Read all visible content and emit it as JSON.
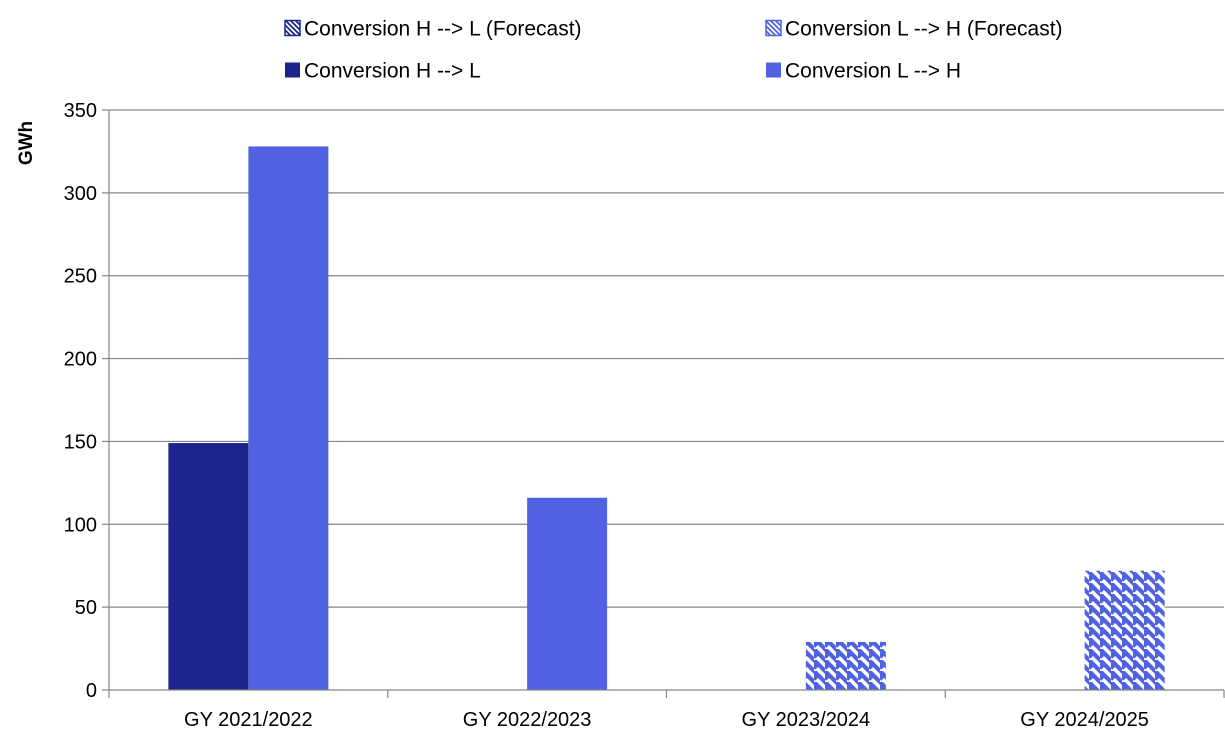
{
  "chart_data": {
    "type": "bar",
    "title": "",
    "xlabel": "",
    "ylabel": "GWh",
    "ylim": [
      0,
      350
    ],
    "yticks": [
      0,
      50,
      100,
      150,
      200,
      250,
      300,
      350
    ],
    "grid": true,
    "legend_position": "top",
    "categories": [
      "GY 2021/2022",
      "GY 2022/2023",
      "GY 2023/2024",
      "GY 2024/2025"
    ],
    "series": [
      {
        "name": "Conversion H --> L",
        "values": [
          149,
          0,
          0,
          0
        ],
        "color": "#1b258c",
        "pattern": "solid"
      },
      {
        "name": "Conversion L --> H",
        "values": [
          328,
          116,
          0,
          0
        ],
        "color": "#5061e2",
        "pattern": "solid"
      },
      {
        "name": "Conversion H --> L (Forecast)",
        "values": [
          0,
          0,
          0,
          0
        ],
        "color": "#1b258c",
        "pattern": "hatch"
      },
      {
        "name": "Conversion L --> H (Forecast)",
        "values": [
          0,
          0,
          29,
          72
        ],
        "color": "#5061e2",
        "pattern": "hatch"
      }
    ],
    "legend_order": [
      2,
      3,
      0,
      1
    ]
  }
}
